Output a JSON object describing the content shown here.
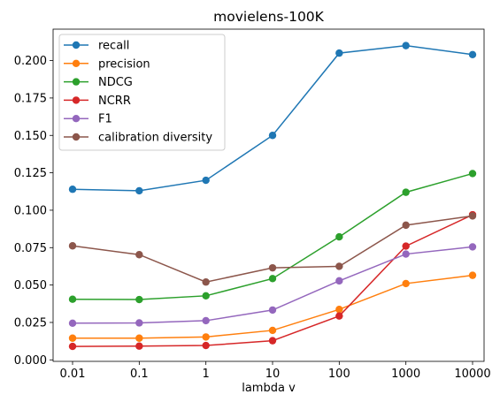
{
  "chart_data": {
    "type": "line",
    "title": "movielens-100K",
    "xlabel": "lambda v",
    "ylabel": "",
    "categories": [
      "0.01",
      "0.1",
      "1",
      "10",
      "100",
      "1000",
      "10000"
    ],
    "ylim": [
      -0.001,
      0.221
    ],
    "yticks": [
      "0.000",
      "0.025",
      "0.050",
      "0.075",
      "0.100",
      "0.125",
      "0.150",
      "0.175",
      "0.200"
    ],
    "grid": false,
    "legend_position": "upper-left",
    "series": [
      {
        "name": "recall",
        "color": "#1f77b4",
        "values": [
          0.114,
          0.113,
          0.12,
          0.15,
          0.205,
          0.21,
          0.204
        ]
      },
      {
        "name": "precision",
        "color": "#ff7f0e",
        "values": [
          0.0145,
          0.0145,
          0.0153,
          0.0197,
          0.0337,
          0.051,
          0.0565
        ]
      },
      {
        "name": "NDCG",
        "color": "#2ca02c",
        "values": [
          0.0405,
          0.0403,
          0.0428,
          0.0543,
          0.0822,
          0.112,
          0.1245
        ]
      },
      {
        "name": "NCRR",
        "color": "#d62728",
        "values": [
          0.009,
          0.0092,
          0.0096,
          0.0128,
          0.0293,
          0.076,
          0.097
        ]
      },
      {
        "name": "F1",
        "color": "#9467bd",
        "values": [
          0.0245,
          0.0247,
          0.0262,
          0.0333,
          0.0528,
          0.0707,
          0.0755
        ]
      },
      {
        "name": "calibration diversity",
        "color": "#8c564b",
        "values": [
          0.0762,
          0.0703,
          0.052,
          0.0615,
          0.0625,
          0.09,
          0.0962
        ]
      }
    ]
  }
}
